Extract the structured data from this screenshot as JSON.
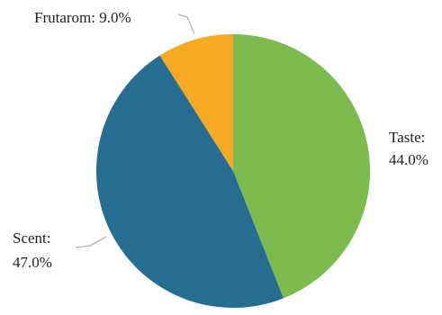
{
  "chart_data": {
    "type": "pie",
    "title": "",
    "slices": [
      {
        "label": "Taste",
        "value": 44.0,
        "value_label": "44.0%",
        "color": "#7dbb4f"
      },
      {
        "label": "Scent",
        "value": 47.0,
        "value_label": "47.0%",
        "color": "#266d92"
      },
      {
        "label": "Frutarom",
        "value": 9.0,
        "value_label": "9.0%",
        "color": "#f6a923"
      }
    ],
    "start": "top",
    "direction": "clockwise",
    "legend": "none",
    "label_style": "outside with leader lines"
  }
}
